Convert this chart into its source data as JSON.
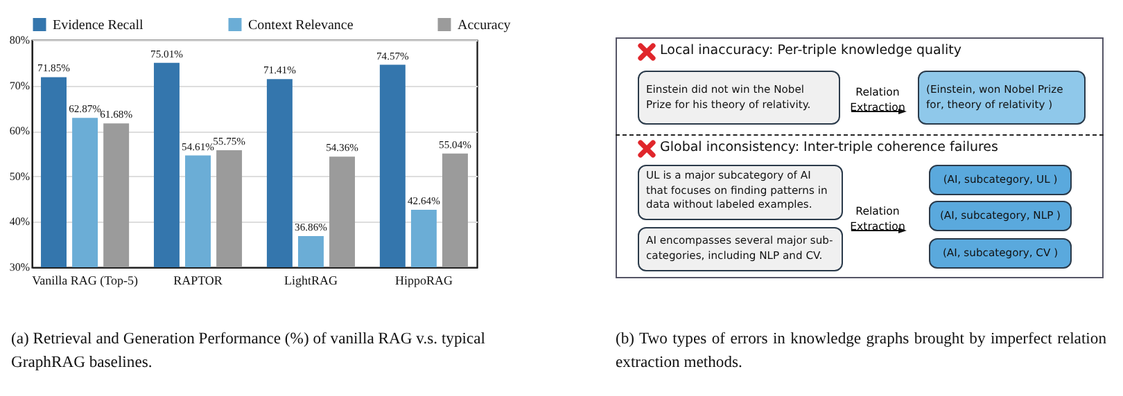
{
  "chart_data": [
    {
      "type": "bar",
      "categories": [
        "Vanilla RAG (Top-5)",
        "RAPTOR",
        "LightRAG",
        "HippoRAG"
      ],
      "series": [
        {
          "name": "Evidence Recall",
          "color": "#3476ad",
          "values": [
            71.85,
            75.01,
            71.41,
            74.57
          ]
        },
        {
          "name": "Context Relevance",
          "color": "#6badd6",
          "values": [
            62.87,
            54.61,
            36.86,
            42.64
          ]
        },
        {
          "name": "Accuracy",
          "color": "#9b9b9b",
          "values": [
            61.68,
            55.75,
            54.36,
            55.04
          ]
        }
      ],
      "ylim": [
        30,
        80
      ],
      "yticks": [
        {
          "value": 30,
          "label": "30%"
        },
        {
          "value": 40,
          "label": "40%"
        },
        {
          "value": 50,
          "label": "50%"
        },
        {
          "value": 60,
          "label": "60%"
        },
        {
          "value": 70,
          "label": "70%"
        },
        {
          "value": 80,
          "label": "80%"
        }
      ],
      "grid": "y",
      "legend": "top",
      "value_labels": [
        [
          "71.85%",
          "75.01%",
          "71.41%",
          "74.57%"
        ],
        [
          "62.87%",
          "54.61%",
          "36.86%",
          "42.64%"
        ],
        [
          "61.68%",
          "55.75%",
          "54.36%",
          "55.04%"
        ]
      ],
      "annotations": [
        "(a) Retrieval and Generation Performance (%) of vanilla RAG v.s. typical GraphRAG baselines."
      ]
    },
    {
      "type": "other",
      "annotations": [
        "Local inaccuracy: Per-triple knowledge quality",
        "Einstein did not win the Nobel Prize for his theory of relativity.",
        "Relation Extraction",
        "(Einstein, won Nobel Prize for, theory of relativity )",
        "Global inconsistency: Inter-triple coherence failures",
        "UL is a major subcategory of AI that focuses on finding patterns in data without labeled examples.",
        "AI encompasses several major sub-categories, including NLP and CV.",
        "Relation Extraction",
        "(AI, subcategory, UL )",
        "(AI, subcategory, NLP )",
        "(AI, subcategory, CV )",
        "(b) Two types of errors in knowledge graphs brought by imperfect relation extraction methods."
      ]
    }
  ]
}
